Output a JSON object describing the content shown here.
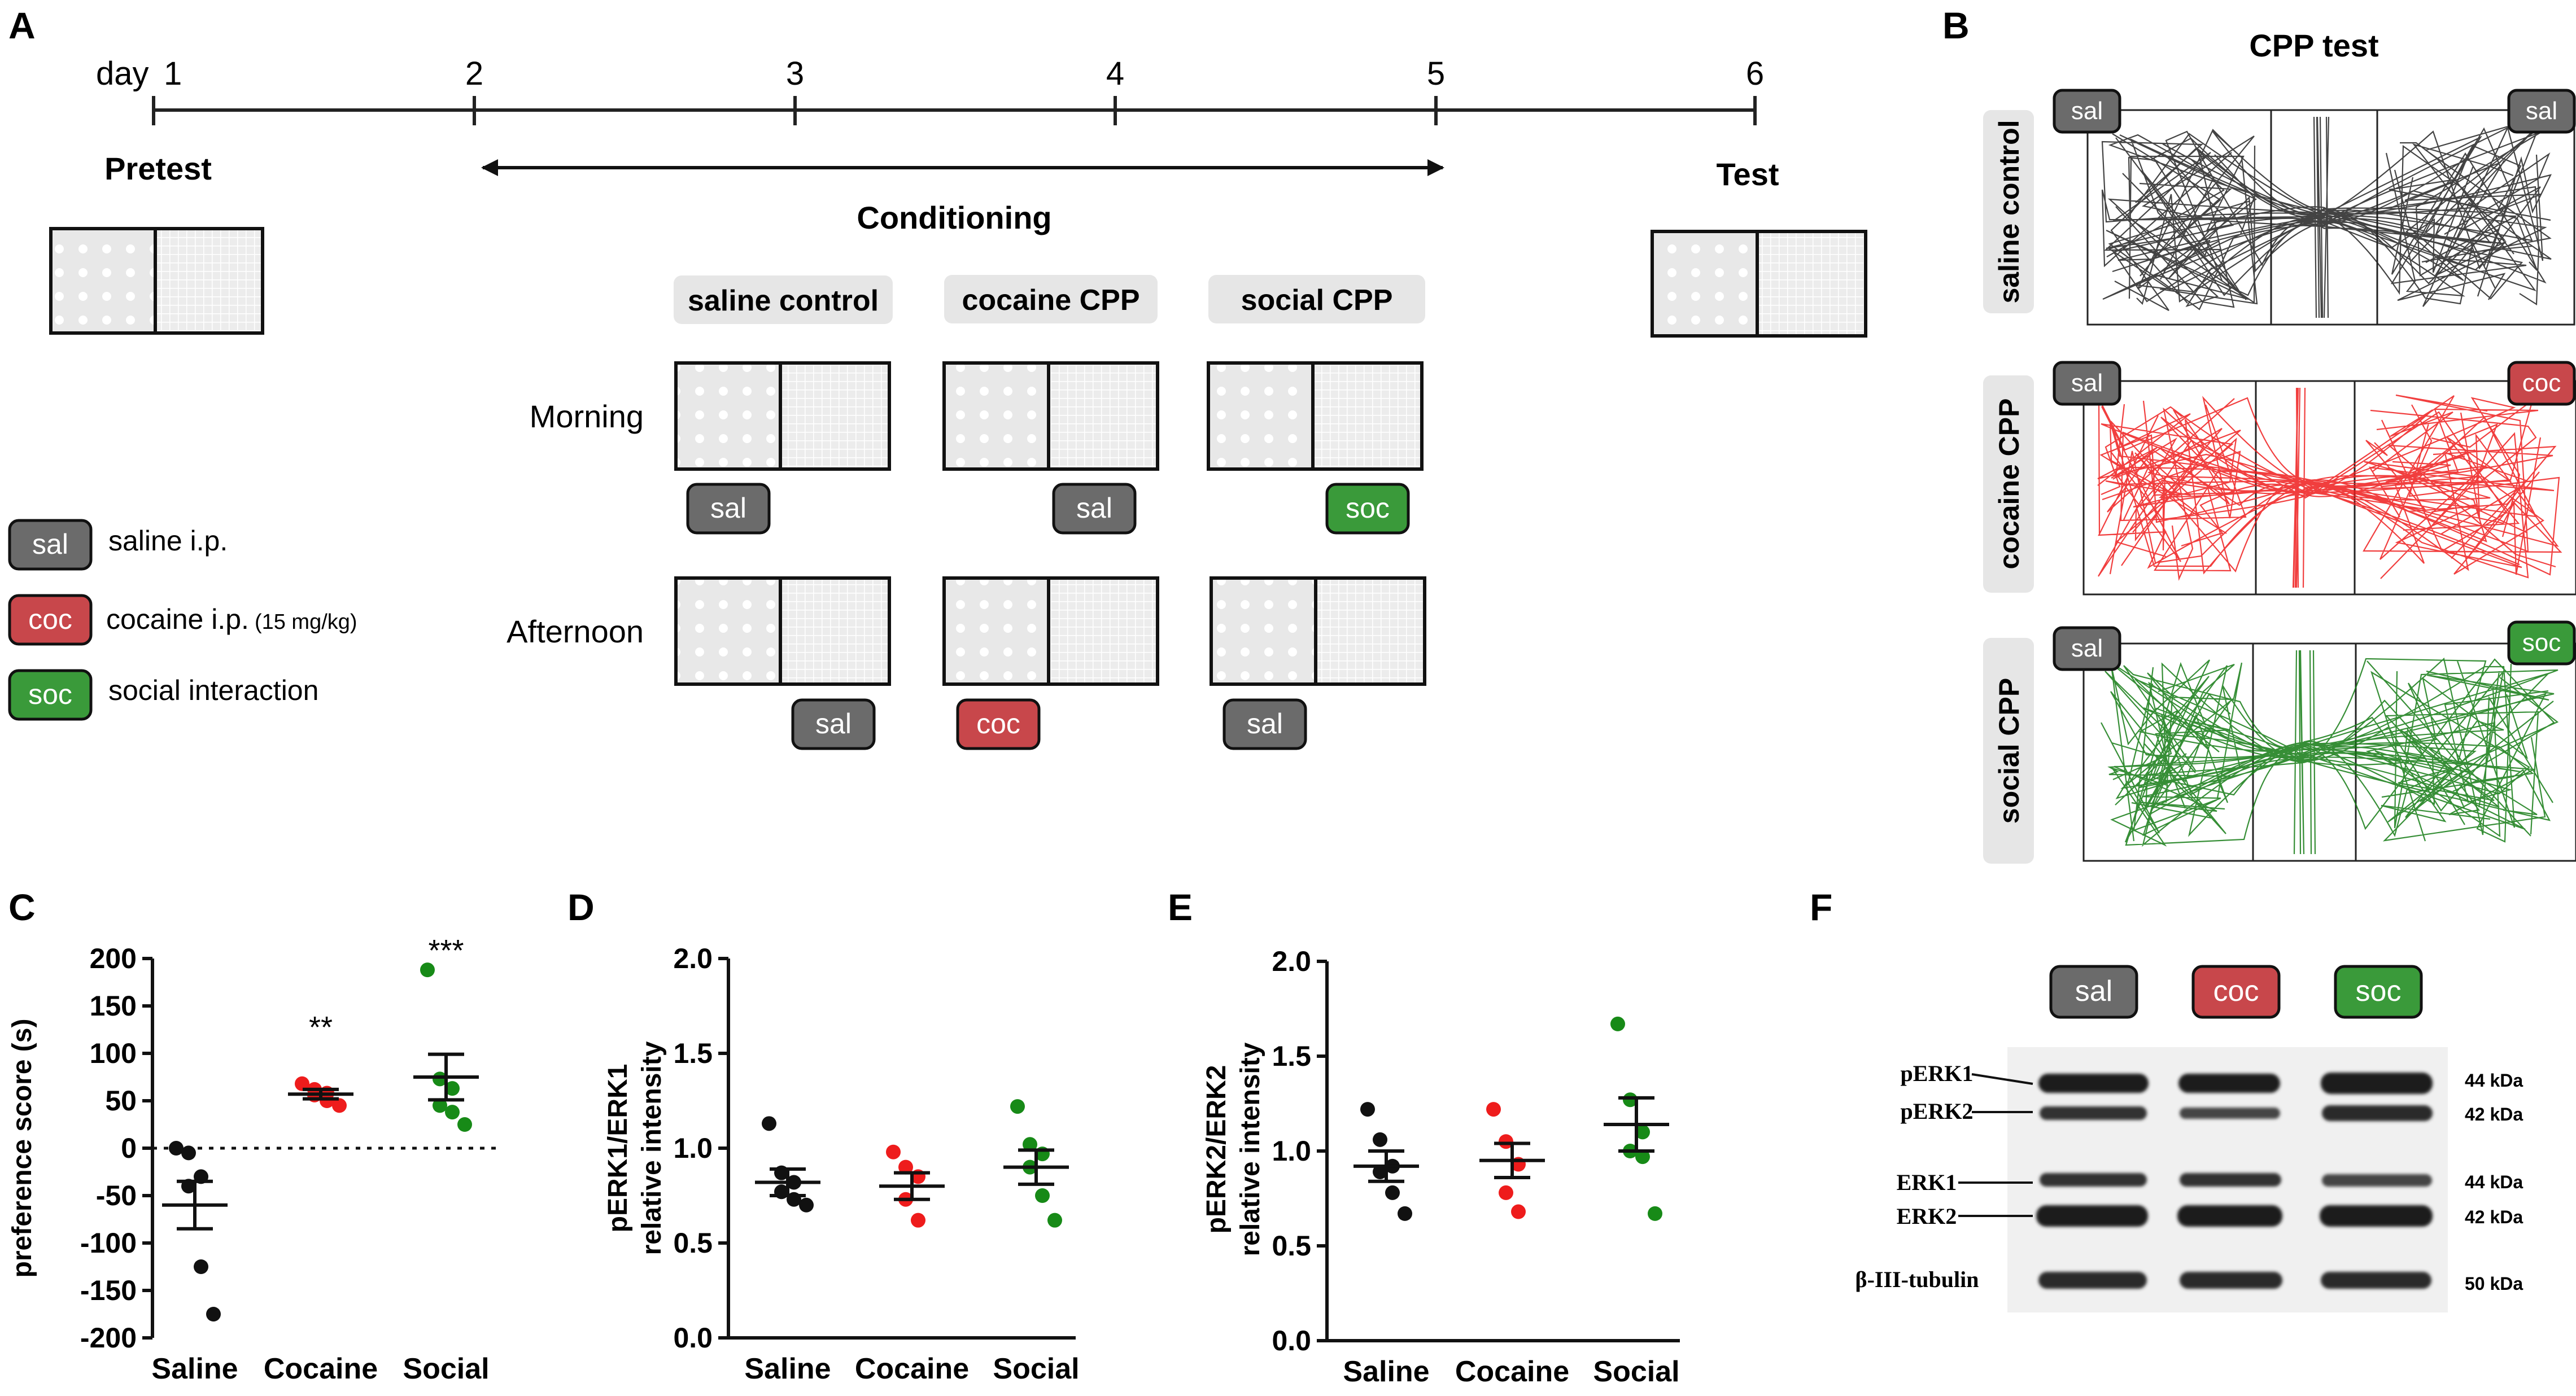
{
  "panels": {
    "A": "A",
    "B": "B",
    "C": "C",
    "D": "D",
    "E": "E",
    "F": "F"
  },
  "timeline": {
    "day_prefix": "day",
    "days": [
      "1",
      "2",
      "3",
      "4",
      "5",
      "6"
    ],
    "pretest": "Pretest",
    "test": "Test",
    "conditioning": "Conditioning"
  },
  "groups": {
    "saline": "saline control",
    "cocaine": "cocaine CPP",
    "social": "social CPP"
  },
  "sessions": {
    "morning": "Morning",
    "afternoon": "Afternoon"
  },
  "tags": {
    "sal": "sal",
    "coc": "coc",
    "soc": "soc"
  },
  "legend": {
    "sal": "saline i.p.",
    "coc": "cocaine i.p.",
    "coc_dose": "(15 mg/kg)",
    "soc": "social interaction"
  },
  "colors": {
    "sal": "#6b6b6b",
    "coc": "#c8474b",
    "soc": "#3a9a3a",
    "saline_pts": "#111111",
    "cocaine_pts": "#ee1c1c",
    "social_pts": "#178a17"
  },
  "cpp_test": {
    "title": "CPP test"
  },
  "chart_data": [
    {
      "type": "scatter",
      "panel": "C",
      "ylabel": "preference score (s)",
      "categories": [
        "Saline",
        "Cocaine",
        "Social"
      ],
      "ylim": [
        -200,
        200
      ],
      "yticks": [
        "200",
        "150",
        "100",
        "50",
        "0",
        "-50",
        "-100",
        "-150",
        "-200"
      ],
      "reference_line": 0,
      "significance": [
        "",
        "**",
        "***"
      ],
      "series": [
        {
          "name": "Saline",
          "mean": -60,
          "sem": 25,
          "points": [
            0,
            -5,
            -30,
            -40,
            -125,
            -175
          ]
        },
        {
          "name": "Cocaine",
          "mean": 57,
          "sem": 5,
          "points": [
            68,
            62,
            58,
            56,
            50,
            45
          ]
        },
        {
          "name": "Social",
          "mean": 75,
          "sem": 24,
          "points": [
            188,
            73,
            63,
            45,
            38,
            25
          ]
        }
      ]
    },
    {
      "type": "scatter",
      "panel": "D",
      "ylabel": [
        "pERK1/ERK1",
        "relative intensity"
      ],
      "categories": [
        "Saline",
        "Cocaine",
        "Social"
      ],
      "ylim": [
        0,
        2.0
      ],
      "yticks": [
        "2.0",
        "1.5",
        "1.0",
        "0.5",
        "0.0"
      ],
      "series": [
        {
          "name": "Saline",
          "mean": 0.82,
          "sem": 0.07,
          "points": [
            1.13,
            0.87,
            0.82,
            0.77,
            0.73,
            0.7
          ]
        },
        {
          "name": "Cocaine",
          "mean": 0.8,
          "sem": 0.07,
          "points": [
            0.98,
            0.9,
            0.85,
            0.73,
            0.62
          ]
        },
        {
          "name": "Social",
          "mean": 0.9,
          "sem": 0.09,
          "points": [
            1.22,
            1.02,
            0.97,
            0.9,
            0.75,
            0.62
          ]
        }
      ]
    },
    {
      "type": "scatter",
      "panel": "E",
      "ylabel": [
        "pERK2/ERK2",
        "relative intensity"
      ],
      "categories": [
        "Saline",
        "Cocaine",
        "Social"
      ],
      "ylim": [
        0,
        2.0
      ],
      "yticks": [
        "2.0",
        "1.5",
        "1.0",
        "0.5",
        "0.0"
      ],
      "series": [
        {
          "name": "Saline",
          "mean": 0.92,
          "sem": 0.08,
          "points": [
            1.22,
            1.06,
            0.92,
            0.89,
            0.78,
            0.67
          ]
        },
        {
          "name": "Cocaine",
          "mean": 0.95,
          "sem": 0.09,
          "points": [
            1.22,
            1.05,
            0.93,
            0.78,
            0.68
          ]
        },
        {
          "name": "Social",
          "mean": 1.14,
          "sem": 0.14,
          "points": [
            1.67,
            1.27,
            1.1,
            1.0,
            0.97,
            0.67
          ]
        }
      ]
    }
  ],
  "western_blot": {
    "labels": [
      "pERK1",
      "pERK2",
      "ERK1",
      "ERK2",
      "β-III-tubulin"
    ],
    "kda": [
      "44 kDa",
      "42 kDa",
      "44 kDa",
      "42 kDa",
      "50 kDa"
    ]
  }
}
